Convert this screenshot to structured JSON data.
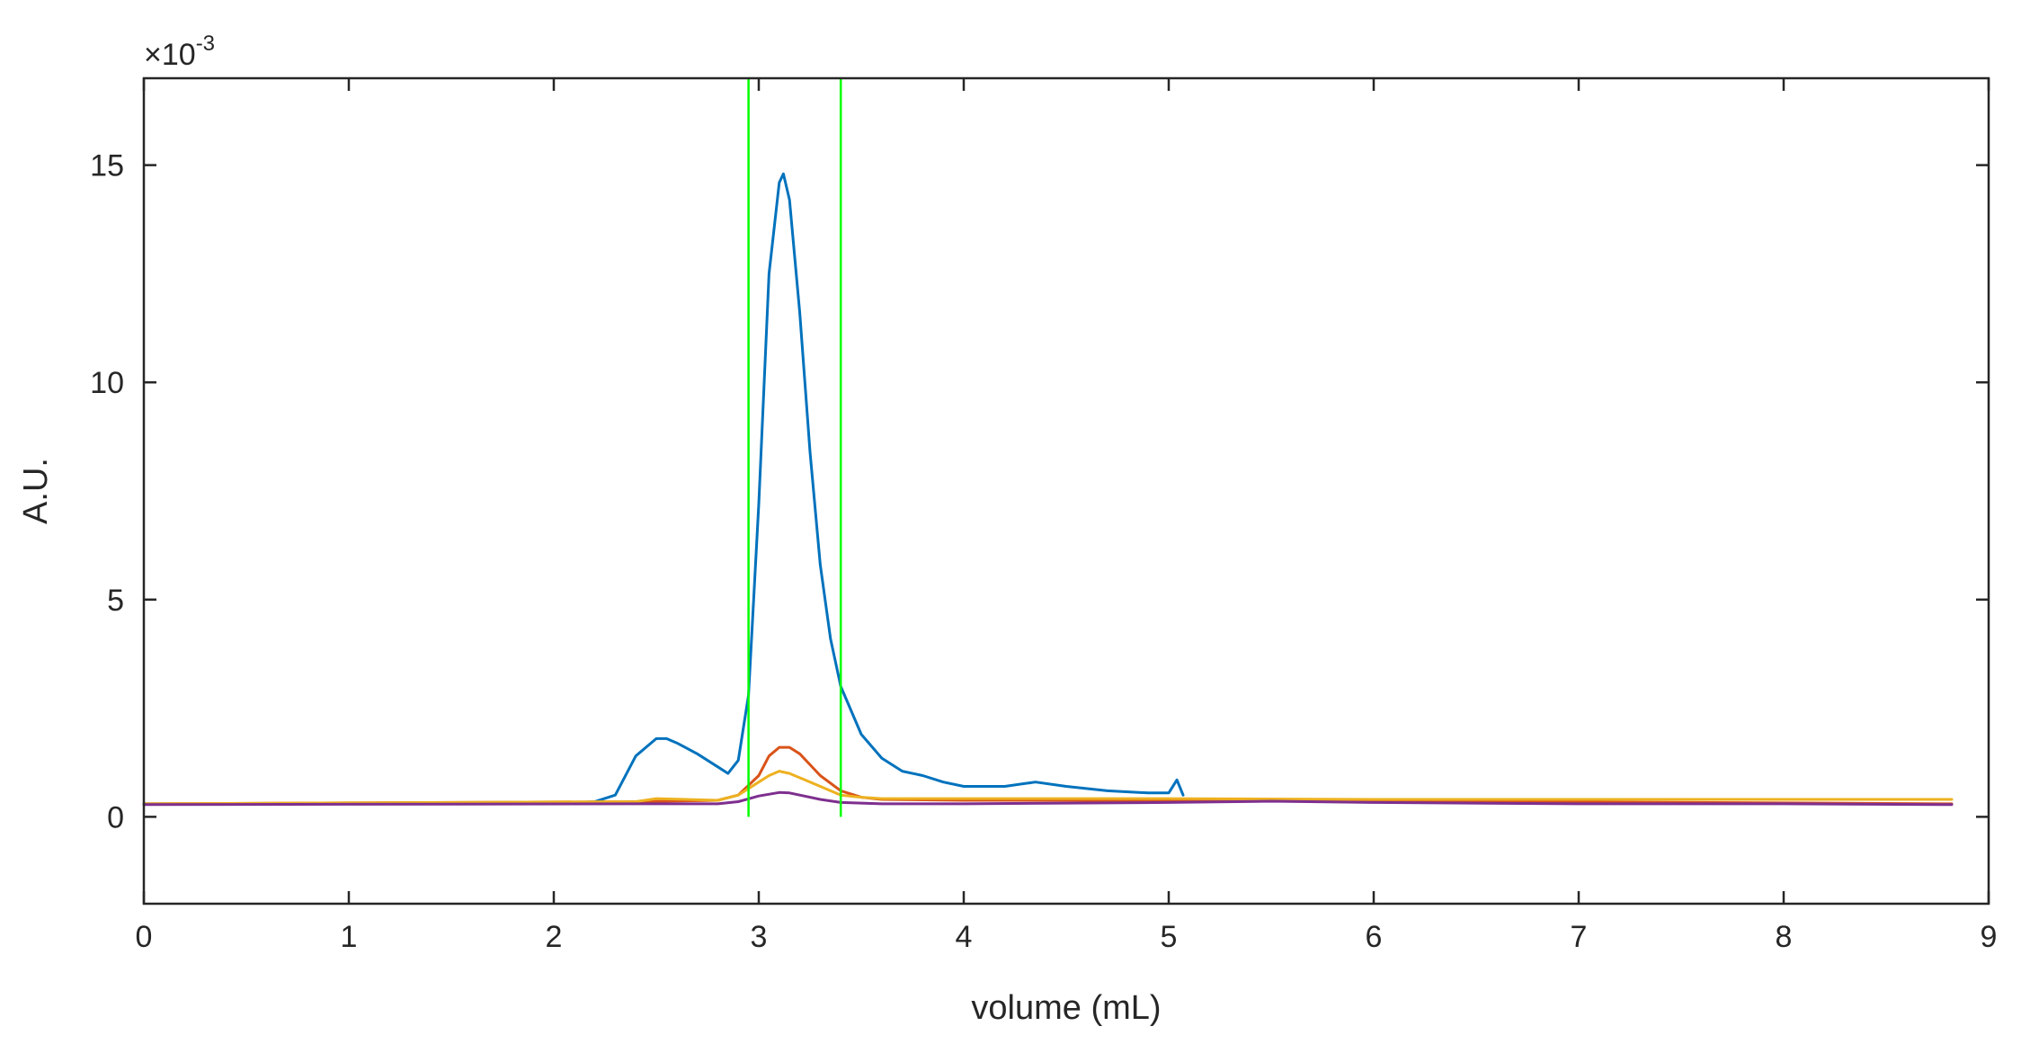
{
  "chart_data": {
    "type": "line",
    "title": "",
    "xlabel": "volume (mL)",
    "ylabel": "A.U.",
    "y_scale_label": "×10",
    "y_scale_exponent": "-3",
    "xlim": [
      0,
      9
    ],
    "ylim": [
      -2,
      17
    ],
    "x_ticks": [
      "0",
      "1",
      "2",
      "3",
      "4",
      "5",
      "6",
      "7",
      "8",
      "9"
    ],
    "y_ticks": [
      "0",
      "5",
      "10",
      "15"
    ],
    "grid": false,
    "legend": "none",
    "vertical_markers": [
      {
        "x": 2.95,
        "color": "#00ff00"
      },
      {
        "x": 3.4,
        "color": "#00ff00"
      }
    ],
    "series": [
      {
        "color": "#0072bd",
        "x": [
          0,
          1,
          2,
          2.2,
          2.3,
          2.4,
          2.5,
          2.55,
          2.6,
          2.7,
          2.8,
          2.85,
          2.9,
          2.95,
          3.0,
          3.05,
          3.1,
          3.12,
          3.15,
          3.2,
          3.25,
          3.3,
          3.35,
          3.4,
          3.5,
          3.6,
          3.7,
          3.8,
          3.9,
          4.0,
          4.2,
          4.35,
          4.5,
          4.7,
          4.9,
          5.0,
          5.04,
          5.07
        ],
        "y": [
          0.3,
          0.3,
          0.3,
          0.35,
          0.5,
          1.4,
          1.8,
          1.8,
          1.7,
          1.45,
          1.15,
          1.0,
          1.3,
          2.8,
          7.2,
          12.5,
          14.6,
          14.8,
          14.2,
          11.6,
          8.4,
          5.8,
          4.1,
          3.0,
          1.9,
          1.35,
          1.05,
          0.95,
          0.8,
          0.7,
          0.7,
          0.8,
          0.7,
          0.6,
          0.55,
          0.55,
          0.85,
          0.5
        ]
      },
      {
        "color": "#d95319",
        "x": [
          0,
          2.4,
          2.8,
          2.9,
          3.0,
          3.05,
          3.1,
          3.15,
          3.2,
          3.25,
          3.3,
          3.4,
          3.5,
          3.6,
          4.0,
          5.0,
          6.0,
          7.0,
          8.0,
          8.82
        ],
        "y": [
          0.3,
          0.35,
          0.38,
          0.5,
          0.95,
          1.4,
          1.6,
          1.6,
          1.45,
          1.2,
          0.95,
          0.6,
          0.45,
          0.4,
          0.38,
          0.38,
          0.36,
          0.34,
          0.32,
          0.3
        ]
      },
      {
        "color": "#edb120",
        "x": [
          0,
          2.4,
          2.5,
          2.8,
          2.9,
          3.0,
          3.05,
          3.1,
          3.15,
          3.2,
          3.3,
          3.4,
          3.5,
          3.6,
          4.0,
          5.0,
          6.0,
          7.0,
          8.0,
          8.82
        ],
        "y": [
          0.3,
          0.35,
          0.42,
          0.38,
          0.5,
          0.8,
          0.95,
          1.05,
          1.0,
          0.9,
          0.7,
          0.5,
          0.45,
          0.42,
          0.42,
          0.42,
          0.4,
          0.4,
          0.4,
          0.4
        ]
      },
      {
        "color": "#7e2f8e",
        "x": [
          0,
          2.4,
          2.8,
          2.9,
          3.0,
          3.1,
          3.15,
          3.2,
          3.3,
          3.4,
          3.6,
          4.0,
          5.0,
          5.5,
          6.0,
          7.0,
          8.0,
          8.82
        ],
        "y": [
          0.28,
          0.3,
          0.3,
          0.35,
          0.48,
          0.56,
          0.55,
          0.5,
          0.4,
          0.33,
          0.3,
          0.3,
          0.33,
          0.36,
          0.33,
          0.3,
          0.3,
          0.28
        ]
      }
    ]
  }
}
